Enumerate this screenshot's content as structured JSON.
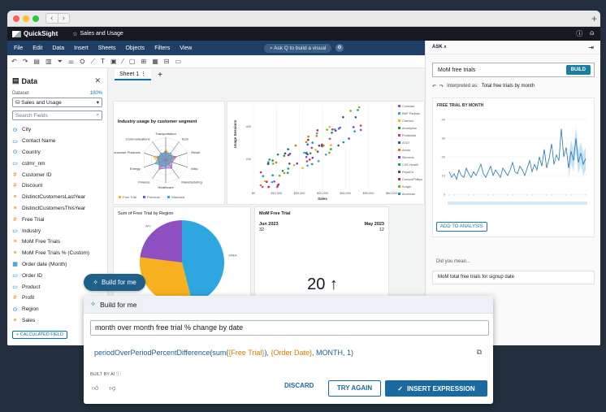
{
  "app": {
    "brand": "QuickSight",
    "sheet_title": "Sales and Usage",
    "menu": [
      "File",
      "Edit",
      "Data",
      "Insert",
      "Sheets",
      "Objects",
      "Filters",
      "View"
    ],
    "ask_q": "Ask Q to build a visual"
  },
  "data_panel": {
    "title": "Data",
    "dataset_label": "Dataset",
    "dataset_pct": "100%",
    "dataset_name": "Sales and Usage",
    "search_placeholder": "Search Fields",
    "fields": [
      {
        "name": "City",
        "type": "geo"
      },
      {
        "name": "Contact Name",
        "type": "dim"
      },
      {
        "name": "Country",
        "type": "geo"
      },
      {
        "name": "cstmr_nm",
        "type": "dim"
      },
      {
        "name": "Customer ID",
        "type": "meas"
      },
      {
        "name": "Discount",
        "type": "meas"
      },
      {
        "name": "DistinctCustomersLastYear",
        "type": "calc"
      },
      {
        "name": "DistinctCustomersThisYear",
        "type": "calc"
      },
      {
        "name": "Free Trial",
        "type": "meas"
      },
      {
        "name": "Industry",
        "type": "dim"
      },
      {
        "name": "MoM Free Trials",
        "type": "calc"
      },
      {
        "name": "MoM Free Trials % (Custom)",
        "type": "calc"
      },
      {
        "name": "Order date (Month)",
        "type": "date"
      },
      {
        "name": "Order ID",
        "type": "dim"
      },
      {
        "name": "Product",
        "type": "dim"
      },
      {
        "name": "Profit",
        "type": "meas"
      },
      {
        "name": "Region",
        "type": "geo"
      },
      {
        "name": "Sales",
        "type": "calc"
      }
    ],
    "calc_field_button": "+ CALCULATED FIELD"
  },
  "canvas": {
    "sheet_tab": "Sheet 1",
    "radar": {
      "title": "Industry usage by customer segment",
      "axes": [
        "Transportation",
        "Tech",
        "Retail",
        "Misc",
        "Manufacturing",
        "Healthcare",
        "Finance",
        "Energy",
        "Consumer Products",
        "Communications"
      ],
      "legend": [
        "Free Trial",
        "Premium",
        "Standard"
      ]
    },
    "scatter": {
      "ylabel": "Usage Sessions",
      "xlabel": "Sales",
      "xticks": [
        "$0",
        "$10,000",
        "$20,000",
        "$30,000",
        "$40,000",
        "$50,000",
        "$60,000"
      ],
      "yticks": [
        "400",
        "200"
      ],
      "legend": [
        "Comcast",
        "BNP Paribas",
        "Chevron",
        "Ameriprise",
        "Prudential",
        "AT&T",
        "Aetna",
        "Siemens",
        "CVS Health",
        "PepsiCo",
        "ConocoPhillips",
        "Kroger",
        "American"
      ]
    },
    "pie": {
      "title": "Sum of Free Trial by Region",
      "slices": [
        {
          "label": "EMEA",
          "value": 46,
          "color": "#2ea6df"
        },
        {
          "label": "AMER",
          "value": 31,
          "color": "#f7b01f"
        },
        {
          "label": "APJ",
          "value": 23,
          "color": "#8e4fc1"
        }
      ]
    },
    "kpi": {
      "title": "MoM Free Trial",
      "left_period": "Jun 2023",
      "left_value": "32",
      "right_period": "May 2023",
      "right_value": "12",
      "value": "20",
      "arrow": "↑"
    }
  },
  "ask_panel": {
    "title": "ASK",
    "query": "MoM free trials",
    "build_label": "BUILD",
    "interpreted_label": "Interpreted as:",
    "interpreted_value": "Total free trials by month",
    "chart_title": "FREE TRIAL BY MONTH",
    "yticks": [
      "40",
      "30",
      "20",
      "10",
      "0"
    ],
    "add_button": "ADD TO ANALYSIS",
    "did_you_mean": "Did you mean...",
    "suggestion": "MoM total free trials for signup date",
    "chart_data": {
      "type": "line",
      "ylim": [
        0,
        40
      ],
      "y": [
        12,
        9,
        11,
        8,
        13,
        10,
        9,
        14,
        11,
        9,
        12,
        10,
        13,
        16,
        11,
        9,
        12,
        15,
        10,
        13,
        11,
        9,
        14,
        12,
        10,
        13,
        17,
        12,
        11,
        15,
        13,
        10,
        14,
        18,
        12,
        16,
        13,
        20,
        15,
        24,
        14,
        19,
        27,
        16,
        21,
        18,
        35,
        20,
        25,
        14,
        23,
        18,
        30,
        17,
        22,
        16,
        19
      ]
    }
  },
  "build_for_me": {
    "pill_label": "Build for me",
    "header": "Build for me",
    "prompt": "month over month free trial % change by date",
    "expr_fn": "periodOverPeriodPercentDifference(sum(",
    "expr_field1": "{Free Trial}",
    "expr_mid": "), ",
    "expr_field2": "{Order Date}",
    "expr_end": ", MONTH, 1)",
    "built_by_ai": "BUILT BY AI",
    "discard": "DISCARD",
    "try_again": "TRY AGAIN",
    "insert": "INSERT EXPRESSION"
  }
}
